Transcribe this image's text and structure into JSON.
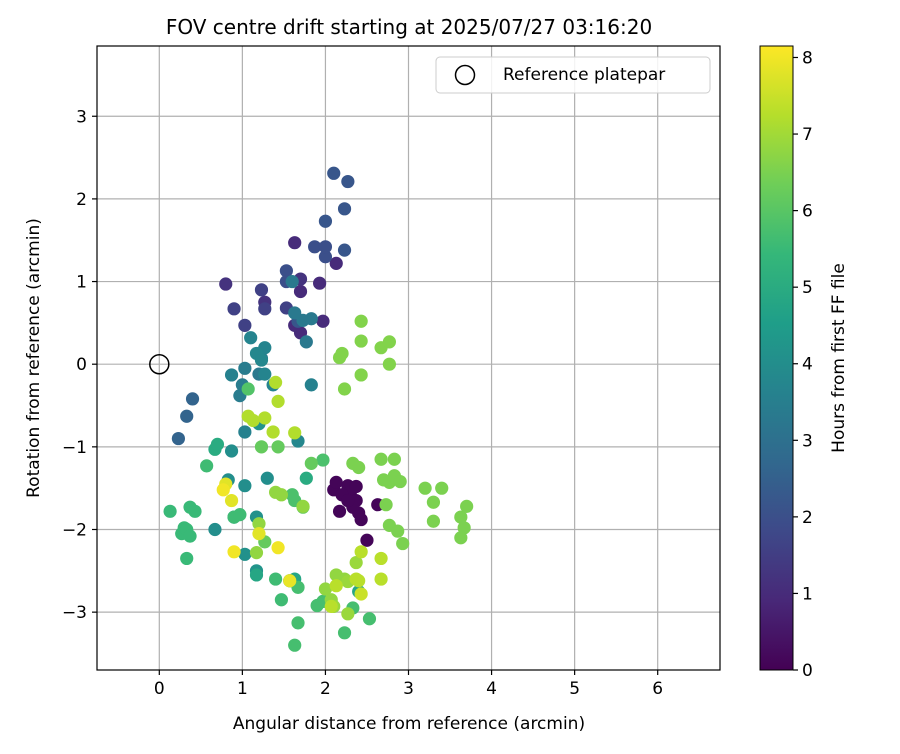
{
  "chart_data": {
    "type": "scatter",
    "title": "FOV centre drift starting at 2025/07/27 03:16:20",
    "xlabel": "Angular distance from reference (arcmin)",
    "ylabel": "Rotation from reference (arcmin)",
    "xlim": [
      -0.75,
      6.75
    ],
    "ylim": [
      -3.7,
      3.85
    ],
    "xticks": [
      0,
      1,
      2,
      3,
      4,
      5,
      6
    ],
    "yticks": [
      -3,
      -2,
      -1,
      0,
      1,
      2,
      3
    ],
    "grid": true,
    "legend": {
      "placement": "top-right",
      "entries": [
        "Reference platepar"
      ]
    },
    "reference_point": {
      "name": "Reference platepar",
      "x": 0,
      "y": 0
    },
    "colorbar": {
      "label": "Hours from first FF file",
      "min": 0,
      "max": 8.15,
      "ticks": [
        0,
        1,
        2,
        3,
        4,
        5,
        6,
        7,
        8
      ],
      "colormap": [
        "#440154",
        "#482878",
        "#3e4989",
        "#31688e",
        "#26828e",
        "#1f9e89",
        "#35b779",
        "#6ece58",
        "#b5de2b",
        "#fde725"
      ]
    },
    "points": [
      {
        "x": 2.1,
        "y": -1.52,
        "h": 0.1
      },
      {
        "x": 2.13,
        "y": -1.43,
        "h": 0.1
      },
      {
        "x": 2.27,
        "y": -1.47,
        "h": 0.1
      },
      {
        "x": 2.3,
        "y": -1.55,
        "h": 0.1
      },
      {
        "x": 2.37,
        "y": -1.65,
        "h": 0.1
      },
      {
        "x": 2.4,
        "y": -1.8,
        "h": 0.1
      },
      {
        "x": 2.43,
        "y": -1.88,
        "h": 0.1
      },
      {
        "x": 2.37,
        "y": -1.48,
        "h": 0.1
      },
      {
        "x": 2.5,
        "y": -2.13,
        "h": 0.1
      },
      {
        "x": 2.63,
        "y": -1.7,
        "h": 0.1
      },
      {
        "x": 2.2,
        "y": -1.58,
        "h": 0.1
      },
      {
        "x": 2.17,
        "y": -1.78,
        "h": 0.1
      },
      {
        "x": 2.33,
        "y": -1.73,
        "h": 0.1
      },
      {
        "x": 2.27,
        "y": -1.65,
        "h": 0.1
      },
      {
        "x": 2.13,
        "y": 1.22,
        "h": 1.0
      },
      {
        "x": 1.63,
        "y": 1.47,
        "h": 1.0
      },
      {
        "x": 1.93,
        "y": 0.98,
        "h": 1.0
      },
      {
        "x": 1.97,
        "y": 0.52,
        "h": 1.0
      },
      {
        "x": 1.7,
        "y": 0.88,
        "h": 1.0
      },
      {
        "x": 1.7,
        "y": 0.38,
        "h": 1.0
      },
      {
        "x": 1.63,
        "y": 0.47,
        "h": 1.0
      },
      {
        "x": 0.8,
        "y": 0.97,
        "h": 1.2
      },
      {
        "x": 1.27,
        "y": 0.75,
        "h": 1.2
      },
      {
        "x": 1.7,
        "y": 1.03,
        "h": 1.2
      },
      {
        "x": 0.9,
        "y": 0.67,
        "h": 1.6
      },
      {
        "x": 1.03,
        "y": 0.47,
        "h": 1.6
      },
      {
        "x": 1.23,
        "y": 0.9,
        "h": 1.6
      },
      {
        "x": 1.27,
        "y": 0.67,
        "h": 1.6
      },
      {
        "x": 1.53,
        "y": 0.68,
        "h": 1.6
      },
      {
        "x": 1.53,
        "y": 1.13,
        "h": 2.0
      },
      {
        "x": 1.53,
        "y": 1.0,
        "h": 2.0
      },
      {
        "x": 1.87,
        "y": 1.42,
        "h": 2.0
      },
      {
        "x": 2.0,
        "y": 1.3,
        "h": 2.0
      },
      {
        "x": 2.0,
        "y": 1.42,
        "h": 2.0
      },
      {
        "x": 2.1,
        "y": 2.31,
        "h": 2.2
      },
      {
        "x": 2.27,
        "y": 2.21,
        "h": 2.2
      },
      {
        "x": 2.23,
        "y": 1.88,
        "h": 2.2
      },
      {
        "x": 2.0,
        "y": 1.73,
        "h": 2.2
      },
      {
        "x": 2.23,
        "y": 1.38,
        "h": 2.2
      },
      {
        "x": 1.67,
        "y": 0.52,
        "h": 2.2
      },
      {
        "x": 0.4,
        "y": -0.42,
        "h": 2.6
      },
      {
        "x": 0.33,
        "y": -0.63,
        "h": 2.6
      },
      {
        "x": 0.23,
        "y": -0.9,
        "h": 2.6
      },
      {
        "x": 1.77,
        "y": 0.27,
        "h": 3.3
      },
      {
        "x": 1.6,
        "y": 1.0,
        "h": 3.3
      },
      {
        "x": 1.73,
        "y": 0.53,
        "h": 3.3
      },
      {
        "x": 1.83,
        "y": 0.55,
        "h": 3.3
      },
      {
        "x": 1.63,
        "y": 0.62,
        "h": 3.3
      },
      {
        "x": 1.23,
        "y": 0.07,
        "h": 3.3
      },
      {
        "x": 1.2,
        "y": -0.12,
        "h": 3.3
      },
      {
        "x": 1.03,
        "y": -0.05,
        "h": 3.4
      },
      {
        "x": 0.97,
        "y": -0.38,
        "h": 3.4
      },
      {
        "x": 1.0,
        "y": -0.25,
        "h": 3.4
      },
      {
        "x": 1.03,
        "y": -0.82,
        "h": 3.6
      },
      {
        "x": 0.87,
        "y": -0.13,
        "h": 3.6
      },
      {
        "x": 1.83,
        "y": -0.25,
        "h": 3.6
      },
      {
        "x": 1.27,
        "y": 0.2,
        "h": 3.7
      },
      {
        "x": 1.1,
        "y": 0.32,
        "h": 3.7
      },
      {
        "x": 1.27,
        "y": -0.12,
        "h": 3.7
      },
      {
        "x": 1.37,
        "y": -0.25,
        "h": 3.7
      },
      {
        "x": 1.67,
        "y": -0.93,
        "h": 3.8
      },
      {
        "x": 1.17,
        "y": 0.13,
        "h": 3.8
      },
      {
        "x": 1.23,
        "y": 0.05,
        "h": 3.8
      },
      {
        "x": 1.3,
        "y": -1.38,
        "h": 4.0
      },
      {
        "x": 1.03,
        "y": -1.47,
        "h": 4.0
      },
      {
        "x": 0.87,
        "y": -1.05,
        "h": 4.0
      },
      {
        "x": 0.83,
        "y": -1.4,
        "h": 4.0
      },
      {
        "x": 0.67,
        "y": -2.0,
        "h": 4.0
      },
      {
        "x": 1.03,
        "y": -2.3,
        "h": 4.1
      },
      {
        "x": 1.17,
        "y": -1.85,
        "h": 4.1
      },
      {
        "x": 1.17,
        "y": -2.5,
        "h": 4.2
      },
      {
        "x": 1.2,
        "y": -0.72,
        "h": 4.2
      },
      {
        "x": 0.9,
        "y": -1.85,
        "h": 4.2
      },
      {
        "x": 1.57,
        "y": -2.62,
        "h": 4.8
      },
      {
        "x": 1.63,
        "y": -2.6,
        "h": 4.8
      },
      {
        "x": 2.4,
        "y": -2.75,
        "h": 4.8
      },
      {
        "x": 1.17,
        "y": -2.55,
        "h": 4.8
      },
      {
        "x": 1.77,
        "y": -1.38,
        "h": 5.0
      },
      {
        "x": 0.67,
        "y": -1.03,
        "h": 5.0
      },
      {
        "x": 0.7,
        "y": -0.97,
        "h": 5.0
      },
      {
        "x": 0.13,
        "y": -1.78,
        "h": 5.5
      },
      {
        "x": 0.3,
        "y": -1.98,
        "h": 5.5
      },
      {
        "x": 0.27,
        "y": -2.05,
        "h": 5.5
      },
      {
        "x": 0.33,
        "y": -2.0,
        "h": 5.5
      },
      {
        "x": 0.37,
        "y": -2.08,
        "h": 5.5
      },
      {
        "x": 0.33,
        "y": -2.35,
        "h": 5.5
      },
      {
        "x": 0.37,
        "y": -1.73,
        "h": 5.5
      },
      {
        "x": 0.43,
        "y": -1.78,
        "h": 5.5
      },
      {
        "x": 0.57,
        "y": -1.23,
        "h": 5.6
      },
      {
        "x": 0.9,
        "y": -1.85,
        "h": 5.6
      },
      {
        "x": 0.97,
        "y": -1.82,
        "h": 5.6
      },
      {
        "x": 1.4,
        "y": -2.6,
        "h": 5.6
      },
      {
        "x": 1.47,
        "y": -2.85,
        "h": 5.6
      },
      {
        "x": 1.67,
        "y": -2.7,
        "h": 5.7
      },
      {
        "x": 1.67,
        "y": -3.13,
        "h": 5.7
      },
      {
        "x": 1.63,
        "y": -3.4,
        "h": 5.7
      },
      {
        "x": 1.9,
        "y": -2.92,
        "h": 5.7
      },
      {
        "x": 1.97,
        "y": -2.87,
        "h": 5.7
      },
      {
        "x": 2.23,
        "y": -3.25,
        "h": 5.7
      },
      {
        "x": 2.53,
        "y": -3.08,
        "h": 5.7
      },
      {
        "x": 2.33,
        "y": -2.95,
        "h": 5.7
      },
      {
        "x": 1.6,
        "y": -1.58,
        "h": 5.8
      },
      {
        "x": 1.63,
        "y": -1.65,
        "h": 5.8
      },
      {
        "x": 1.97,
        "y": -1.16,
        "h": 5.8
      },
      {
        "x": 1.07,
        "y": -0.3,
        "h": 5.9
      },
      {
        "x": 1.43,
        "y": -1.0,
        "h": 6.2
      },
      {
        "x": 1.23,
        "y": -1.0,
        "h": 6.2
      },
      {
        "x": 1.83,
        "y": -1.2,
        "h": 6.2
      },
      {
        "x": 1.73,
        "y": -1.73,
        "h": 6.2
      },
      {
        "x": 1.27,
        "y": -2.15,
        "h": 6.2
      },
      {
        "x": 2.33,
        "y": -1.2,
        "h": 6.5
      },
      {
        "x": 2.4,
        "y": -1.25,
        "h": 6.5
      },
      {
        "x": 2.67,
        "y": -1.15,
        "h": 6.5
      },
      {
        "x": 2.7,
        "y": -1.4,
        "h": 6.5
      },
      {
        "x": 2.77,
        "y": -1.43,
        "h": 6.5
      },
      {
        "x": 2.83,
        "y": -1.15,
        "h": 6.5
      },
      {
        "x": 2.83,
        "y": -1.35,
        "h": 6.5
      },
      {
        "x": 2.9,
        "y": -1.42,
        "h": 6.5
      },
      {
        "x": 3.2,
        "y": -1.5,
        "h": 6.5
      },
      {
        "x": 3.4,
        "y": -1.5,
        "h": 6.5
      },
      {
        "x": 3.3,
        "y": -1.67,
        "h": 6.5
      },
      {
        "x": 3.3,
        "y": -1.9,
        "h": 6.5
      },
      {
        "x": 3.63,
        "y": -1.85,
        "h": 6.5
      },
      {
        "x": 3.67,
        "y": -1.98,
        "h": 6.5
      },
      {
        "x": 3.7,
        "y": -1.72,
        "h": 6.5
      },
      {
        "x": 3.63,
        "y": -2.1,
        "h": 6.5
      },
      {
        "x": 2.77,
        "y": -1.95,
        "h": 6.5
      },
      {
        "x": 2.73,
        "y": -1.7,
        "h": 6.5
      },
      {
        "x": 2.87,
        "y": -2.02,
        "h": 6.5
      },
      {
        "x": 2.93,
        "y": -2.17,
        "h": 6.5
      },
      {
        "x": 2.43,
        "y": 0.52,
        "h": 6.6
      },
      {
        "x": 2.43,
        "y": 0.28,
        "h": 6.6
      },
      {
        "x": 2.2,
        "y": 0.13,
        "h": 6.6
      },
      {
        "x": 2.17,
        "y": 0.08,
        "h": 6.6
      },
      {
        "x": 2.67,
        "y": 0.2,
        "h": 6.6
      },
      {
        "x": 2.77,
        "y": 0.27,
        "h": 6.6
      },
      {
        "x": 2.77,
        "y": 0.0,
        "h": 6.6
      },
      {
        "x": 2.43,
        "y": -0.13,
        "h": 6.6
      },
      {
        "x": 2.23,
        "y": -0.3,
        "h": 6.6
      },
      {
        "x": 1.4,
        "y": -1.55,
        "h": 6.8
      },
      {
        "x": 1.47,
        "y": -1.58,
        "h": 6.8
      },
      {
        "x": 1.73,
        "y": -1.72,
        "h": 6.8
      },
      {
        "x": 1.2,
        "y": -1.93,
        "h": 6.8
      },
      {
        "x": 1.17,
        "y": -2.28,
        "h": 6.8
      },
      {
        "x": 2.0,
        "y": -2.72,
        "h": 6.8
      },
      {
        "x": 2.07,
        "y": -2.85,
        "h": 6.8
      },
      {
        "x": 2.13,
        "y": -2.55,
        "h": 6.8
      },
      {
        "x": 2.23,
        "y": -2.6,
        "h": 6.8
      },
      {
        "x": 2.37,
        "y": -2.4,
        "h": 6.9
      },
      {
        "x": 2.27,
        "y": -2.63,
        "h": 6.9
      },
      {
        "x": 2.27,
        "y": -3.02,
        "h": 6.9
      },
      {
        "x": 2.1,
        "y": -2.93,
        "h": 6.9
      },
      {
        "x": 1.4,
        "y": -0.22,
        "h": 7.2
      },
      {
        "x": 1.43,
        "y": -0.45,
        "h": 7.2
      },
      {
        "x": 1.07,
        "y": -0.63,
        "h": 7.2
      },
      {
        "x": 1.13,
        "y": -0.68,
        "h": 7.2
      },
      {
        "x": 1.27,
        "y": -0.65,
        "h": 7.2
      },
      {
        "x": 1.37,
        "y": -0.82,
        "h": 7.2
      },
      {
        "x": 1.63,
        "y": -0.83,
        "h": 7.2
      },
      {
        "x": 2.37,
        "y": -2.6,
        "h": 7.3
      },
      {
        "x": 2.4,
        "y": -2.62,
        "h": 7.3
      },
      {
        "x": 2.67,
        "y": -2.35,
        "h": 7.3
      },
      {
        "x": 2.67,
        "y": -2.6,
        "h": 7.3
      },
      {
        "x": 2.43,
        "y": -2.27,
        "h": 7.3
      },
      {
        "x": 2.07,
        "y": -2.93,
        "h": 7.3
      },
      {
        "x": 2.13,
        "y": -2.68,
        "h": 7.3
      },
      {
        "x": 2.43,
        "y": -2.78,
        "h": 7.5
      },
      {
        "x": 0.8,
        "y": -1.45,
        "h": 7.8
      },
      {
        "x": 0.87,
        "y": -1.65,
        "h": 7.8
      },
      {
        "x": 1.2,
        "y": -2.05,
        "h": 7.8
      },
      {
        "x": 1.57,
        "y": -2.62,
        "h": 7.9
      },
      {
        "x": 0.77,
        "y": -1.52,
        "h": 8.0
      },
      {
        "x": 0.9,
        "y": -2.27,
        "h": 8.0
      },
      {
        "x": 1.43,
        "y": -2.22,
        "h": 8.0
      }
    ]
  }
}
